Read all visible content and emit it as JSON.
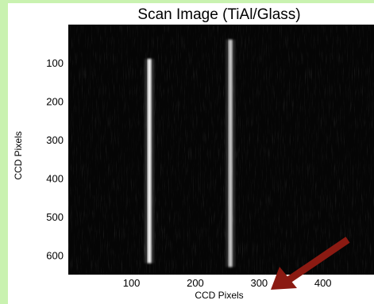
{
  "chart_data": {
    "type": "heatmap",
    "title": "Scan Image (TiAl/Glass)",
    "xlabel": "CCD Pixels",
    "ylabel": "CCD Pixels",
    "xlim": [
      1,
      480
    ],
    "ylim": [
      1,
      650
    ],
    "y_reversed": true,
    "x_ticks": [
      100,
      200,
      300,
      400
    ],
    "y_ticks": [
      100,
      200,
      300,
      400,
      500,
      600
    ],
    "colormap": "gray",
    "bright_stripes": [
      {
        "x_center": 128,
        "y_start": 90,
        "y_end": 620,
        "intensity": 0.95
      },
      {
        "x_center": 255,
        "y_start": 40,
        "y_end": 630,
        "intensity": 0.75
      }
    ]
  },
  "colors": {
    "page_background": "#c9f2b0",
    "panel_background": "#ffffff",
    "image_background": "#050505",
    "arrow": "#8b1a12"
  }
}
